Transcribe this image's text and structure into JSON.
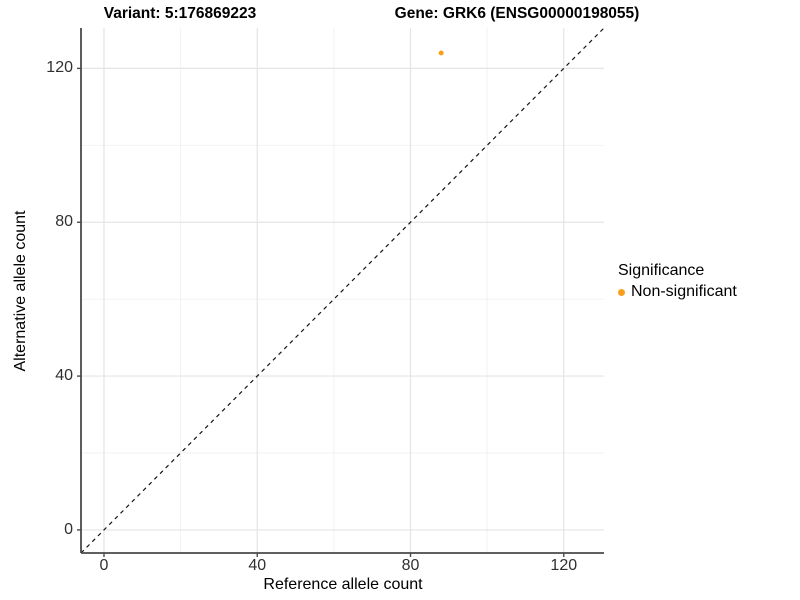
{
  "titles": {
    "variant": "Variant: 5:176869223",
    "gene": "Gene: GRK6 (ENSG00000198055)"
  },
  "chart_data": {
    "type": "scatter",
    "title": "Variant: 5:176869223 | Gene: GRK6 (ENSG00000198055)",
    "xlabel": "Reference allele count",
    "ylabel": "Alternative allele count",
    "xlim": [
      -6,
      130.5
    ],
    "ylim": [
      -6,
      130.5
    ],
    "x_ticks": [
      0,
      40,
      80,
      120
    ],
    "y_ticks": [
      0,
      40,
      80,
      120
    ],
    "x_minor_ticks": [
      20,
      60,
      100
    ],
    "y_minor_ticks": [
      20,
      60,
      100
    ],
    "grid": true,
    "series": [
      {
        "name": "Non-significant",
        "color": "#F9A01B",
        "points": [
          {
            "x": 88,
            "y": 124
          }
        ]
      }
    ],
    "reference_line": {
      "type": "abline",
      "slope": 1,
      "intercept": 0,
      "style": "dashed",
      "color": "#141414"
    },
    "legend": {
      "title": "Significance",
      "position": "right"
    },
    "colors": {
      "grid_major": "#E4E4E4",
      "grid_minor": "#F1F1F1",
      "axis_line": "#4A4A4A",
      "tick_text": "#303030"
    }
  }
}
